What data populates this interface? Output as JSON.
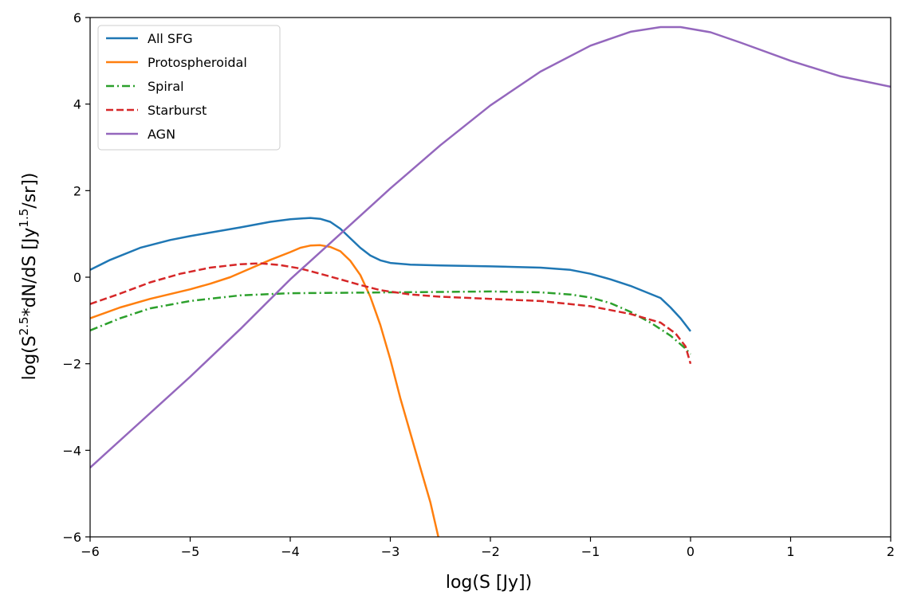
{
  "chart_data": {
    "type": "line",
    "xlabel": "log(S [Jy])",
    "ylabel": {
      "prefix": "log(S",
      "sup1": "2.5",
      "middle": "*dN/dS [Jy",
      "sup2": "1.5",
      "suffix": "/sr])"
    },
    "xlim": [
      -6,
      2
    ],
    "ylim": [
      -6,
      6
    ],
    "xticks": [
      -6,
      -5,
      -4,
      -3,
      -2,
      -1,
      0,
      1,
      2
    ],
    "yticks": [
      -6,
      -4,
      -2,
      0,
      2,
      4,
      6
    ],
    "xtick_labels": [
      "−6",
      "−5",
      "−4",
      "−3",
      "−2",
      "−1",
      "0",
      "1",
      "2"
    ],
    "ytick_labels": [
      "−6",
      "−4",
      "−2",
      "0",
      "2",
      "4",
      "6"
    ],
    "grid": false,
    "legend_position": "top-left",
    "series": [
      {
        "name": "All SFG",
        "color": "#1f77b4",
        "dash": "solid",
        "points": [
          [
            -6,
            0.17
          ],
          [
            -5.8,
            0.4
          ],
          [
            -5.5,
            0.68
          ],
          [
            -5.2,
            0.86
          ],
          [
            -5.0,
            0.95
          ],
          [
            -4.8,
            1.03
          ],
          [
            -4.5,
            1.15
          ],
          [
            -4.2,
            1.28
          ],
          [
            -4.0,
            1.34
          ],
          [
            -3.8,
            1.37
          ],
          [
            -3.7,
            1.35
          ],
          [
            -3.6,
            1.28
          ],
          [
            -3.5,
            1.12
          ],
          [
            -3.4,
            0.9
          ],
          [
            -3.3,
            0.68
          ],
          [
            -3.2,
            0.5
          ],
          [
            -3.1,
            0.39
          ],
          [
            -3.0,
            0.33
          ],
          [
            -2.8,
            0.29
          ],
          [
            -2.5,
            0.27
          ],
          [
            -2.0,
            0.25
          ],
          [
            -1.5,
            0.22
          ],
          [
            -1.2,
            0.17
          ],
          [
            -1.0,
            0.08
          ],
          [
            -0.8,
            -0.05
          ],
          [
            -0.6,
            -0.2
          ],
          [
            -0.3,
            -0.48
          ],
          [
            -0.2,
            -0.7
          ],
          [
            -0.1,
            -0.95
          ],
          [
            0.0,
            -1.25
          ]
        ]
      },
      {
        "name": "Protospheroidal",
        "color": "#ff7f0e",
        "dash": "solid",
        "points": [
          [
            -6,
            -0.95
          ],
          [
            -5.7,
            -0.7
          ],
          [
            -5.4,
            -0.5
          ],
          [
            -5.0,
            -0.28
          ],
          [
            -4.8,
            -0.15
          ],
          [
            -4.6,
            0.0
          ],
          [
            -4.4,
            0.2
          ],
          [
            -4.2,
            0.4
          ],
          [
            -4.0,
            0.58
          ],
          [
            -3.9,
            0.68
          ],
          [
            -3.8,
            0.73
          ],
          [
            -3.7,
            0.74
          ],
          [
            -3.6,
            0.7
          ],
          [
            -3.5,
            0.6
          ],
          [
            -3.4,
            0.38
          ],
          [
            -3.3,
            0.05
          ],
          [
            -3.2,
            -0.45
          ],
          [
            -3.1,
            -1.1
          ],
          [
            -3.0,
            -1.9
          ],
          [
            -2.9,
            -2.8
          ],
          [
            -2.8,
            -3.6
          ],
          [
            -2.7,
            -4.4
          ],
          [
            -2.6,
            -5.2
          ],
          [
            -2.52,
            -6.0
          ]
        ]
      },
      {
        "name": "Spiral",
        "color": "#2ca02c",
        "dash": "dashdot",
        "points": [
          [
            -6,
            -1.23
          ],
          [
            -5.7,
            -0.95
          ],
          [
            -5.4,
            -0.72
          ],
          [
            -5.0,
            -0.55
          ],
          [
            -4.5,
            -0.42
          ],
          [
            -4.0,
            -0.37
          ],
          [
            -3.5,
            -0.36
          ],
          [
            -3.0,
            -0.35
          ],
          [
            -2.5,
            -0.34
          ],
          [
            -2.0,
            -0.33
          ],
          [
            -1.5,
            -0.35
          ],
          [
            -1.2,
            -0.4
          ],
          [
            -1.0,
            -0.47
          ],
          [
            -0.8,
            -0.6
          ],
          [
            -0.6,
            -0.8
          ],
          [
            -0.4,
            -1.05
          ],
          [
            -0.2,
            -1.35
          ],
          [
            -0.05,
            -1.65
          ],
          [
            0.0,
            -1.78
          ]
        ]
      },
      {
        "name": "Starburst",
        "color": "#d62728",
        "dash": "dashed",
        "points": [
          [
            -6,
            -0.62
          ],
          [
            -5.7,
            -0.38
          ],
          [
            -5.4,
            -0.12
          ],
          [
            -5.1,
            0.08
          ],
          [
            -4.8,
            0.22
          ],
          [
            -4.5,
            0.3
          ],
          [
            -4.3,
            0.32
          ],
          [
            -4.1,
            0.28
          ],
          [
            -3.9,
            0.2
          ],
          [
            -3.7,
            0.08
          ],
          [
            -3.5,
            -0.05
          ],
          [
            -3.3,
            -0.18
          ],
          [
            -3.1,
            -0.3
          ],
          [
            -2.8,
            -0.4
          ],
          [
            -2.5,
            -0.45
          ],
          [
            -2.0,
            -0.5
          ],
          [
            -1.5,
            -0.55
          ],
          [
            -1.0,
            -0.67
          ],
          [
            -0.6,
            -0.85
          ],
          [
            -0.3,
            -1.05
          ],
          [
            -0.15,
            -1.3
          ],
          [
            -0.05,
            -1.6
          ],
          [
            0.0,
            -2.0
          ]
        ]
      },
      {
        "name": "AGN",
        "color": "#9467bd",
        "dash": "solid",
        "points": [
          [
            -6,
            -4.4
          ],
          [
            -5.5,
            -3.35
          ],
          [
            -5.0,
            -2.3
          ],
          [
            -4.5,
            -1.2
          ],
          [
            -4.0,
            -0.05
          ],
          [
            -3.5,
            1.0
          ],
          [
            -3.0,
            2.05
          ],
          [
            -2.5,
            3.05
          ],
          [
            -2.0,
            3.97
          ],
          [
            -1.5,
            4.75
          ],
          [
            -1.0,
            5.35
          ],
          [
            -0.6,
            5.67
          ],
          [
            -0.3,
            5.78
          ],
          [
            -0.1,
            5.78
          ],
          [
            0.2,
            5.66
          ],
          [
            0.5,
            5.42
          ],
          [
            1.0,
            5.0
          ],
          [
            1.5,
            4.64
          ],
          [
            2.0,
            4.4
          ]
        ]
      }
    ]
  }
}
